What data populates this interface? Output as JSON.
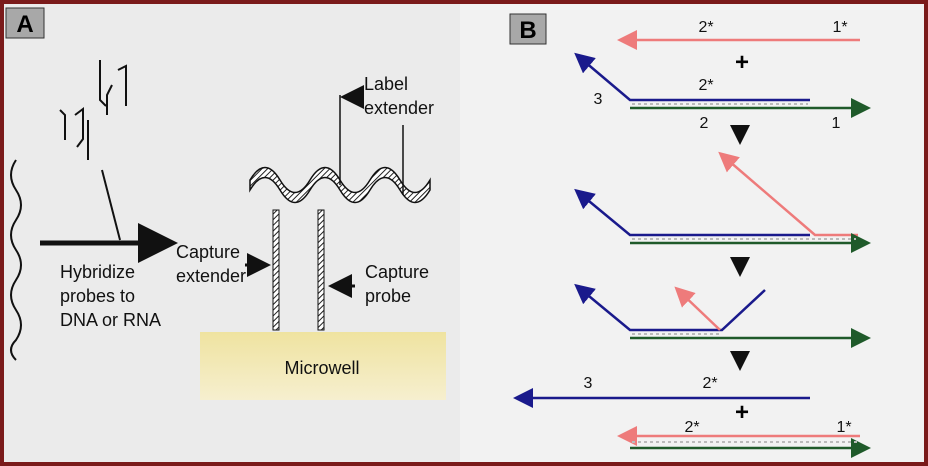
{
  "panel_a": {
    "label": "A",
    "label_extender": [
      "Label",
      "extender"
    ],
    "hybridize": [
      "Hybridize",
      "probes to",
      "DNA or RNA"
    ],
    "capture_extender": [
      "Capture",
      "extender"
    ],
    "capture_probe": [
      "Capture",
      "probe"
    ],
    "microwell": "Microwell"
  },
  "panel_b": {
    "label": "B",
    "strand_labels": [
      "2*",
      "1*",
      "+",
      "3",
      "2*",
      "2",
      "1",
      "3",
      "2*",
      "+",
      "2*",
      "1*"
    ]
  }
}
